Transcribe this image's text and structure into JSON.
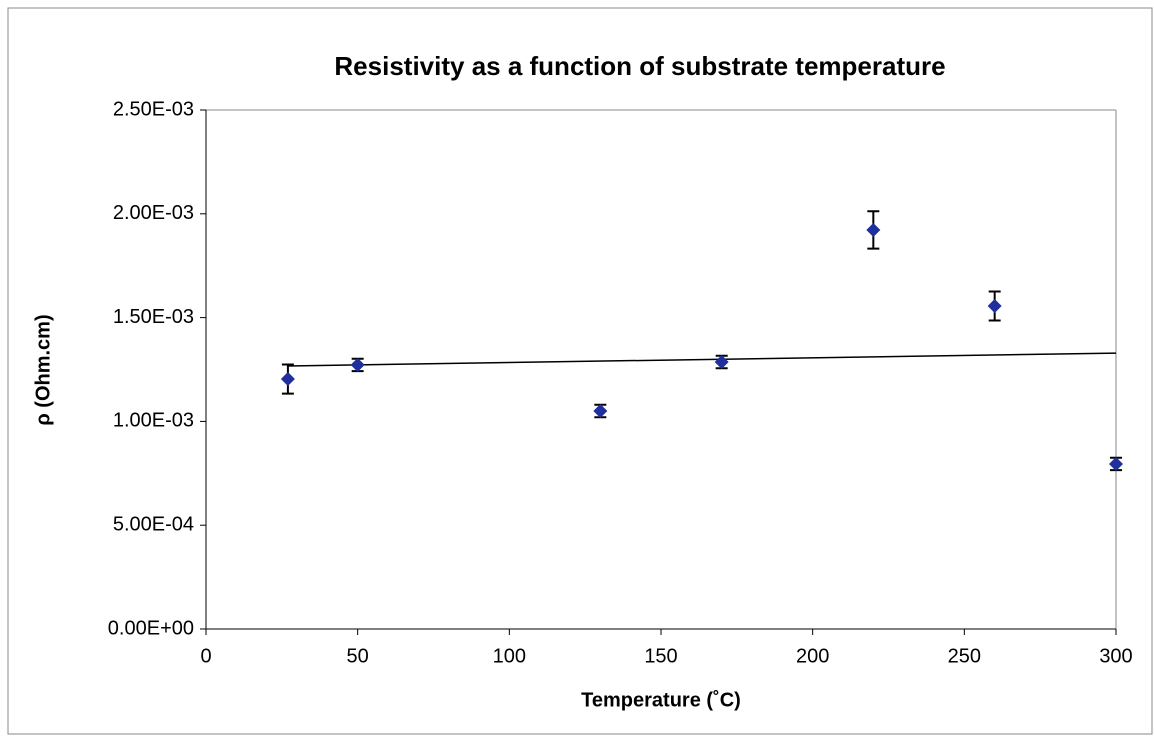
{
  "chart_data": {
    "type": "scatter",
    "title": "Resistivity as a function of substrate temperature",
    "x_label": "Temperature (˚C)",
    "y_label": "ρ (Ohm.cm)",
    "x": [
      27,
      50,
      130,
      170,
      220,
      260,
      300
    ],
    "series": [
      {
        "color": "#1f2f9e",
        "values": [
          0.001204,
          0.001272,
          0.00105,
          0.001286,
          0.001922,
          0.001556,
          0.000795
        ],
        "errors": [
          7e-05,
          3e-05,
          3e-05,
          3e-05,
          9e-05,
          7e-05,
          3e-05
        ]
      }
    ],
    "trendline": {
      "x": [
        27,
        300
      ],
      "values": [
        0.001267,
        0.001329
      ]
    },
    "xlim": [
      0,
      300
    ],
    "xticks": [
      0,
      50,
      100,
      150,
      200,
      250,
      300
    ],
    "ylim": [
      0,
      0.0025
    ],
    "yticks": [
      {
        "value": 0,
        "label": "0.00E+00"
      },
      {
        "value": 0.0005,
        "label": "5.00E-04"
      },
      {
        "value": 0.001,
        "label": "1.00E-03"
      },
      {
        "value": 0.0015,
        "label": "1.50E-03"
      },
      {
        "value": 0.002,
        "label": "2.00E-03"
      },
      {
        "value": 0.0025,
        "label": "2.50E-03"
      }
    ],
    "grid": false
  }
}
